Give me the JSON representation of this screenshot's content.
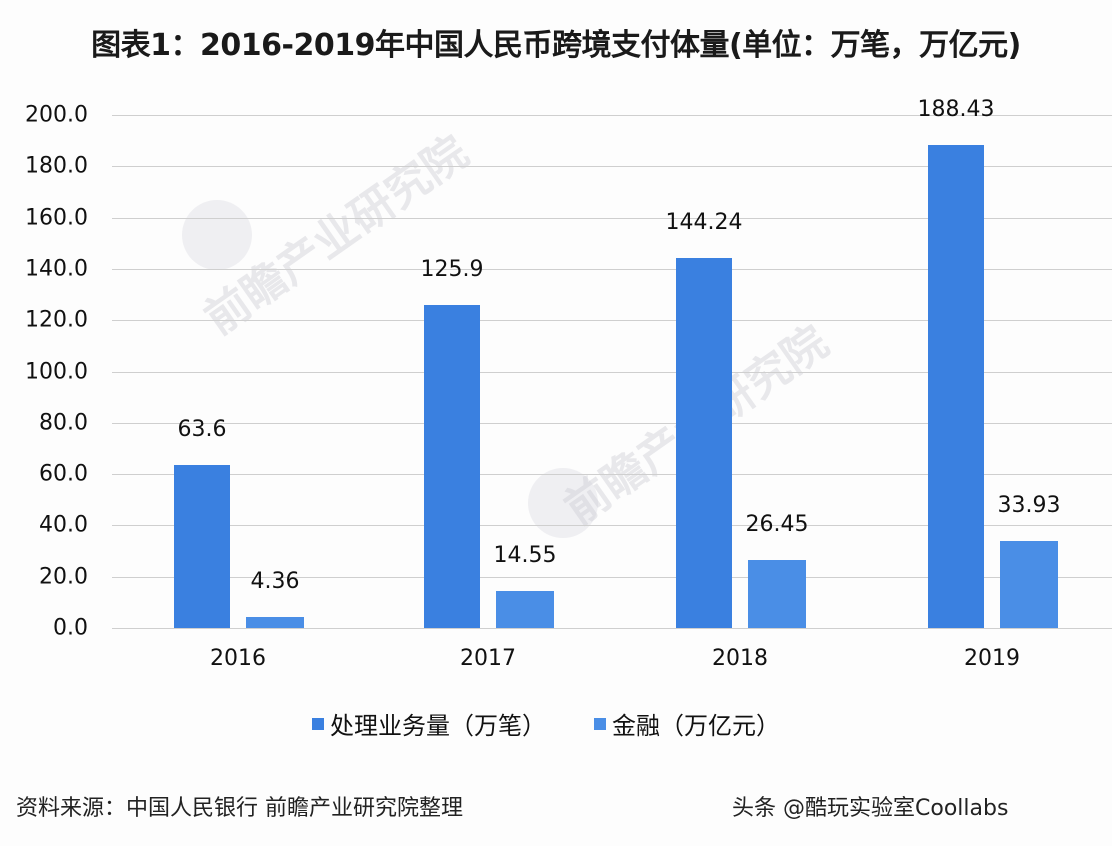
{
  "title": "图表1：2016-2019年中国人民币跨境支付体量(单位：万笔，万亿元)",
  "chart_data": {
    "type": "bar",
    "title": "图表1：2016-2019年中国人民币跨境支付体量(单位：万笔，万亿元)",
    "xlabel": "",
    "ylabel": "",
    "categories": [
      "2016",
      "2017",
      "2018",
      "2019"
    ],
    "series": [
      {
        "name": "处理业务量（万笔）",
        "values": [
          63.6,
          125.9,
          144.24,
          188.43
        ],
        "color": "#3a80e0"
      },
      {
        "name": "金融（万亿元）",
        "values": [
          4.36,
          14.55,
          26.45,
          33.93
        ],
        "color": "#4a8ee6"
      }
    ],
    "ylim": [
      0,
      200
    ],
    "yticks": [
      "0.0",
      "20.0",
      "40.0",
      "60.0",
      "80.0",
      "100.0",
      "120.0",
      "140.0",
      "160.0",
      "180.0",
      "200.0"
    ],
    "grid": true,
    "legend_position": "bottom",
    "data_labels": {
      "s0": [
        "63.6",
        "125.9",
        "144.24",
        "188.43"
      ],
      "s1": [
        "4.36",
        "14.55",
        "26.45",
        "33.93"
      ]
    }
  },
  "legend": [
    "处理业务量（万笔）",
    "金融（万亿元）"
  ],
  "source": "资料来源：中国人民银行 前瞻产业研究院整理",
  "credit": "头条 @酷玩实验室Coollabs",
  "watermark": "前瞻产业研究院"
}
